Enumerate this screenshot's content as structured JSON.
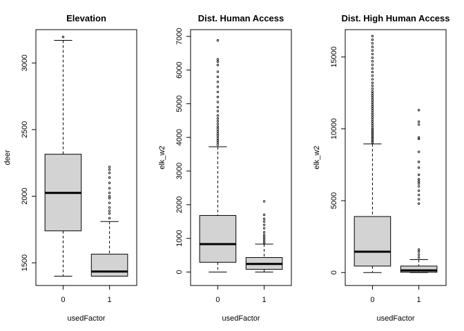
{
  "chart_data": [
    {
      "type": "boxplot",
      "title": "Elevation",
      "xlabel": "usedFactor",
      "ylabel": "deer",
      "categories": [
        "0",
        "1"
      ],
      "ylim": [
        1330,
        3250
      ],
      "yticks": [
        1500,
        2000,
        2500,
        3000
      ],
      "boxes": [
        {
          "category": "0",
          "whisker_low": 1400,
          "q1": 1740,
          "median": 2025,
          "q3": 2315,
          "whisker_high": 3170,
          "outliers": [
            3195
          ]
        },
        {
          "category": "1",
          "whisker_low": 1400,
          "q1": 1400,
          "median": 1435,
          "q3": 1565,
          "whisker_high": 1810,
          "outliers": [
            1835,
            1870,
            1890,
            1915,
            1950,
            1985,
            2000,
            2025,
            2060,
            2100,
            2140,
            2175,
            2200,
            2220
          ]
        }
      ]
    },
    {
      "type": "boxplot",
      "title": "Dist. Human Access",
      "xlabel": "usedFactor",
      "ylabel": "elk_w2",
      "categories": [
        "0",
        "1"
      ],
      "ylim": [
        -400,
        7200
      ],
      "yticks": [
        0,
        1000,
        2000,
        3000,
        4000,
        5000,
        6000,
        7000
      ],
      "boxes": [
        {
          "category": "0",
          "whisker_low": 0,
          "q1": 290,
          "median": 830,
          "q3": 1680,
          "whisker_high": 3720,
          "outliers": [
            3780,
            3850,
            3910,
            3980,
            4050,
            4110,
            4180,
            4250,
            4320,
            4400,
            4480,
            4560,
            4650,
            4780,
            4900,
            5050,
            5200,
            5350,
            5500,
            5650,
            5800,
            5950,
            6150,
            6250,
            6320,
            6880
          ]
        },
        {
          "category": "1",
          "whisker_low": 0,
          "q1": 80,
          "median": 240,
          "q3": 430,
          "whisker_high": 830,
          "outliers": [
            870,
            920,
            980,
            1040,
            1100,
            1180,
            1300,
            1400,
            1500,
            1580,
            1700,
            2100
          ]
        }
      ]
    },
    {
      "type": "boxplot",
      "title": "Dist. High Human Access",
      "xlabel": "usedFactor",
      "ylabel": "elk_w2",
      "categories": [
        "0",
        "1"
      ],
      "ylim": [
        -900,
        16900
      ],
      "yticks": [
        0,
        5000,
        10000,
        15000
      ],
      "boxes": [
        {
          "category": "0",
          "whisker_low": 0,
          "q1": 450,
          "median": 1450,
          "q3": 3900,
          "whisker_high": 8950,
          "outliers": [
            9050,
            9150,
            9250,
            9350,
            9450,
            9550,
            9650,
            9750,
            9850,
            9950,
            10050,
            10200,
            10350,
            10500,
            10650,
            10800,
            10950,
            11100,
            11250,
            11400,
            11550,
            11700,
            11850,
            12000,
            12150,
            12300,
            12450,
            12600,
            12800,
            13000,
            13200,
            13450,
            13700,
            13950,
            14200,
            14450,
            14700,
            14950,
            15200,
            15450,
            15700,
            15950,
            16200,
            16450
          ]
        },
        {
          "category": "1",
          "whisker_low": 0,
          "q1": 20,
          "median": 150,
          "q3": 450,
          "whisker_high": 900,
          "outliers": [
            1050,
            1250,
            1450,
            1600,
            4800,
            5100,
            5400,
            5700,
            6000,
            6200,
            6350,
            6500,
            6800,
            7300,
            7700,
            8400,
            9300,
            9400,
            10300,
            10500,
            11300
          ]
        }
      ]
    }
  ]
}
